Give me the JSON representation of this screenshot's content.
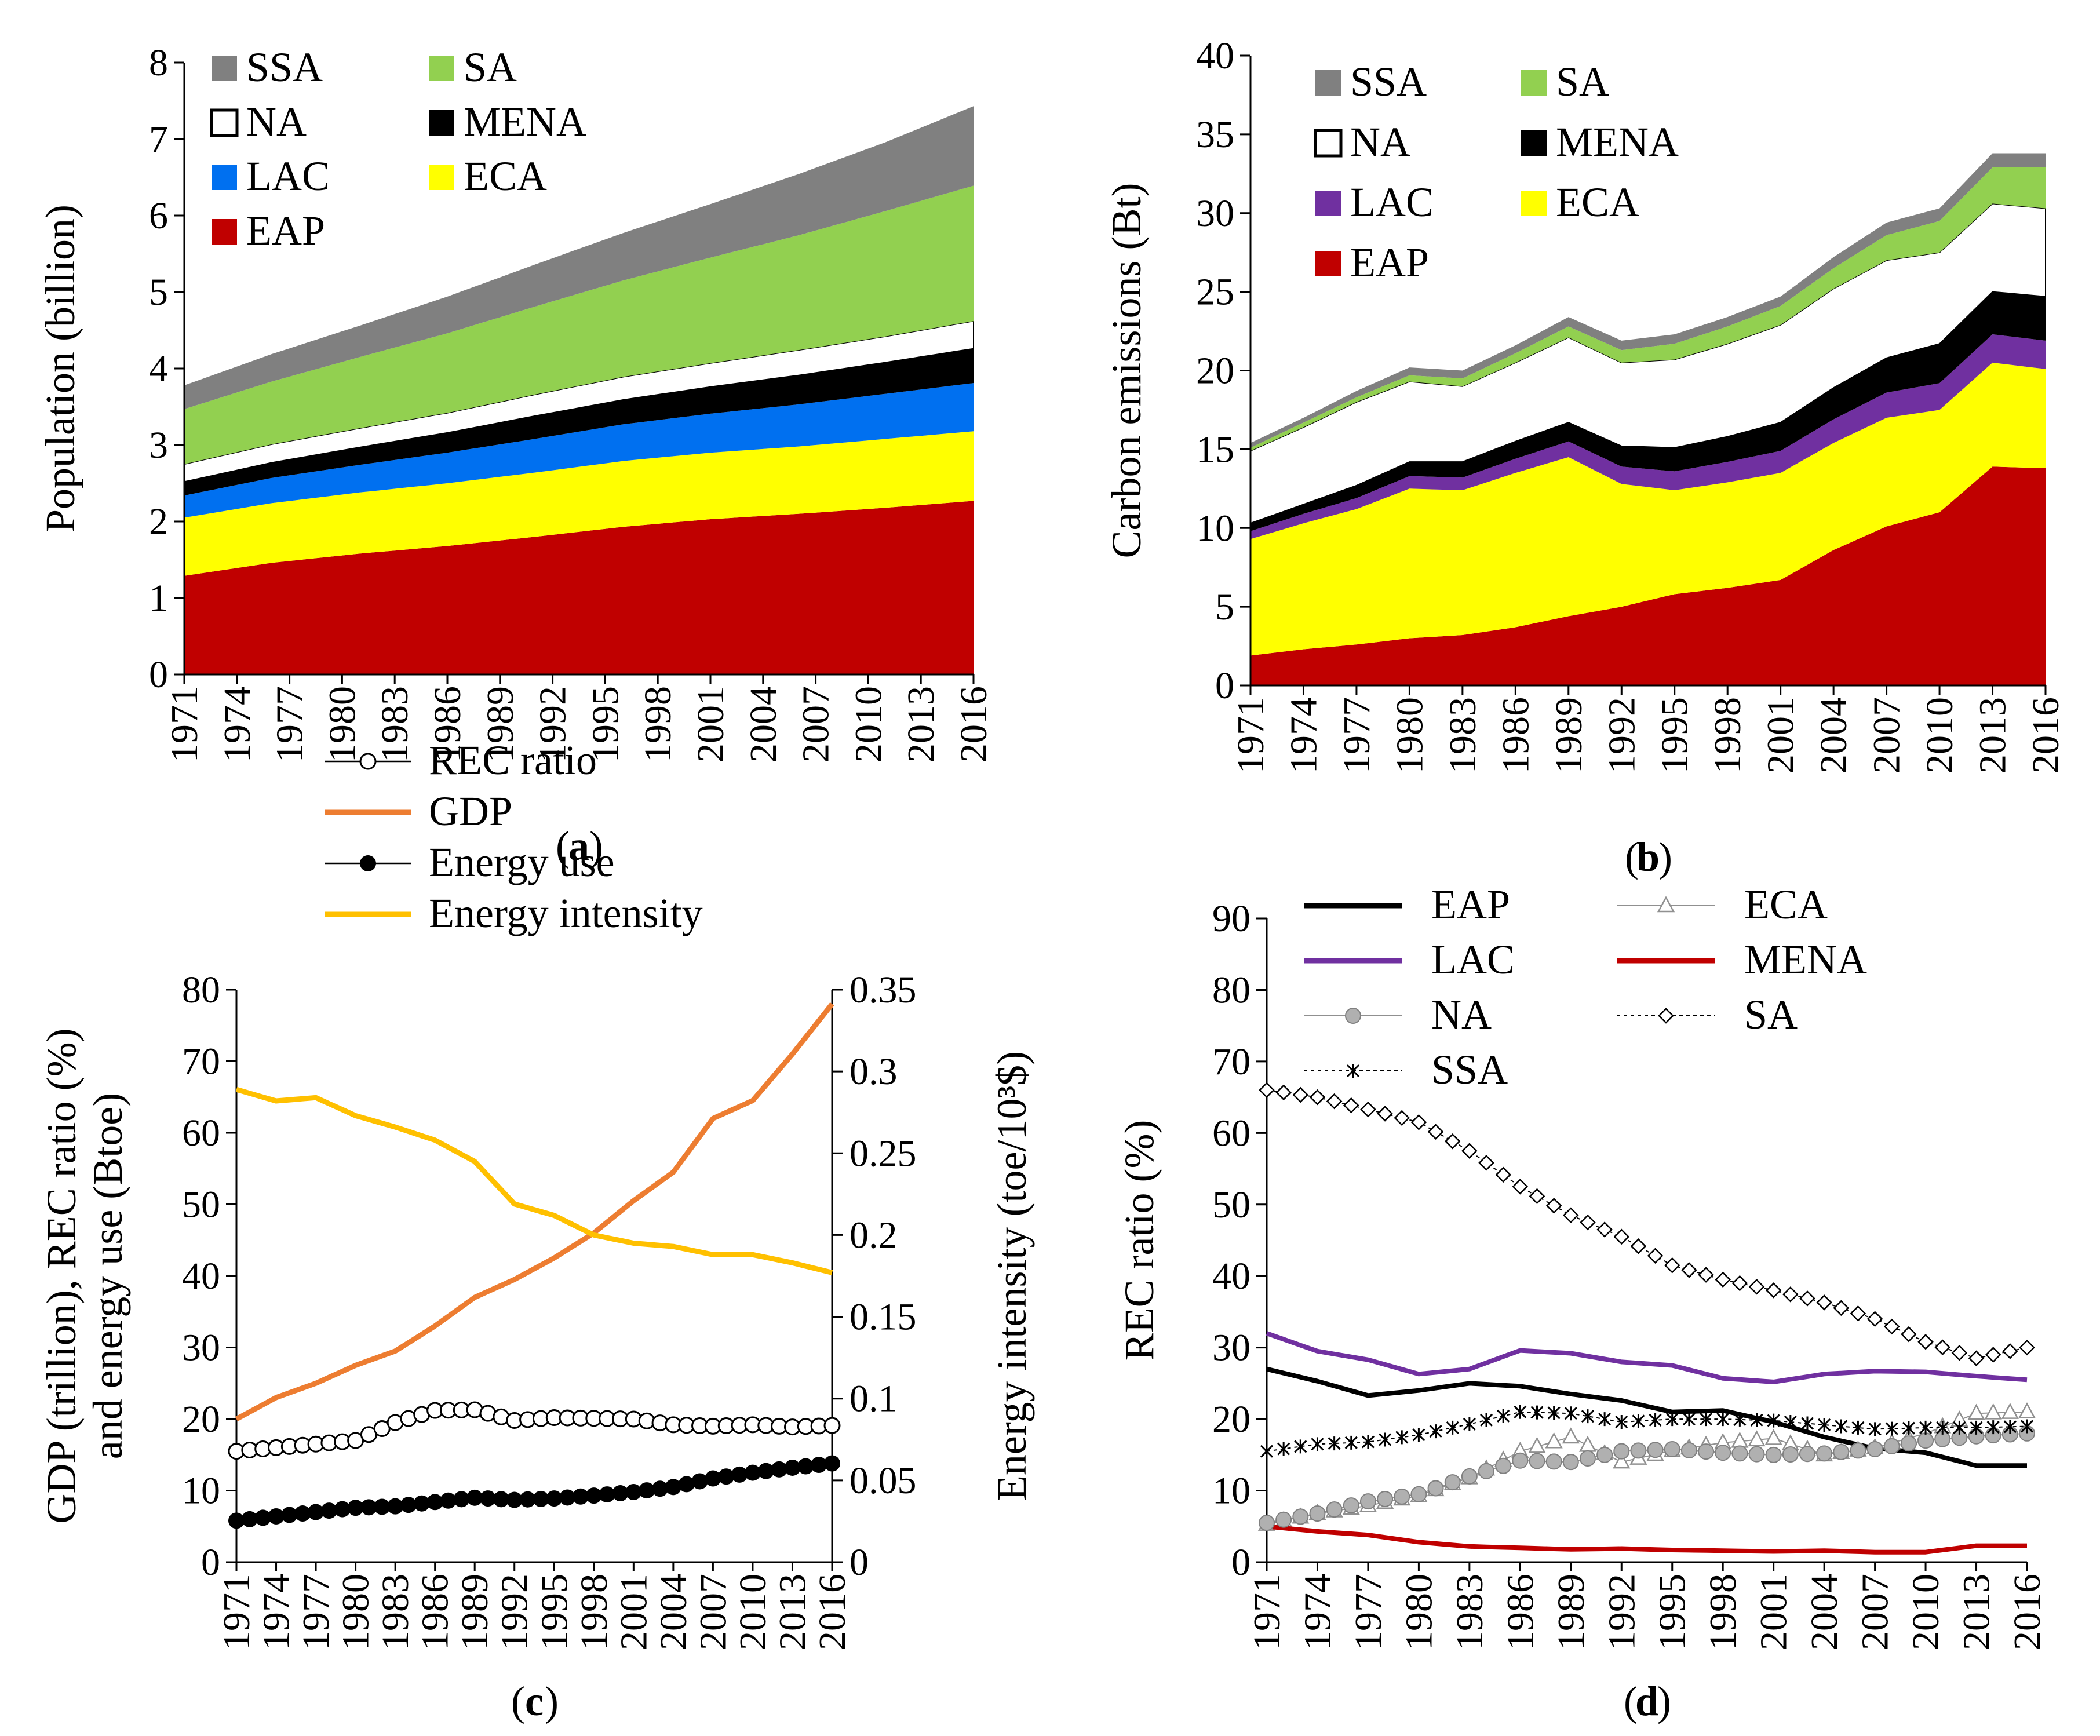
{
  "chart_data": [
    {
      "panel": "a",
      "panel_label": "a",
      "type": "area",
      "stacked": true,
      "ylabel": "Population (billion)",
      "ylim": [
        0,
        8
      ],
      "yticks": [
        "0",
        "1",
        "2",
        "3",
        "4",
        "5",
        "6",
        "7",
        "8"
      ],
      "xtick_labels": [
        "1971",
        "1974",
        "1977",
        "1980",
        "1983",
        "1986",
        "1989",
        "1992",
        "1995",
        "1998",
        "2001",
        "2004",
        "2007",
        "2010",
        "2013",
        "2016"
      ],
      "legend": [
        {
          "label": "SSA",
          "color": "#808080"
        },
        {
          "label": "SA",
          "color": "#92d050"
        },
        {
          "label": "NA",
          "color": "#ffffff"
        },
        {
          "label": "MENA",
          "color": "#000000"
        },
        {
          "label": "LAC",
          "color": "#0070f0"
        },
        {
          "label": "ECA",
          "color": "#ffff00"
        },
        {
          "label": "EAP",
          "color": "#c00000"
        }
      ],
      "years": [
        1971,
        1976,
        1981,
        1986,
        1991,
        1996,
        2001,
        2006,
        2011,
        2016
      ],
      "series": [
        {
          "name": "EAP",
          "color": "#c00000",
          "values": [
            1.29,
            1.46,
            1.58,
            1.68,
            1.8,
            1.93,
            2.03,
            2.1,
            2.18,
            2.27
          ]
        },
        {
          "name": "ECA",
          "color": "#ffff00",
          "values": [
            0.76,
            0.78,
            0.8,
            0.82,
            0.84,
            0.86,
            0.87,
            0.88,
            0.9,
            0.91
          ]
        },
        {
          "name": "LAC",
          "color": "#0070f0",
          "values": [
            0.29,
            0.33,
            0.36,
            0.4,
            0.44,
            0.48,
            0.51,
            0.55,
            0.59,
            0.63
          ]
        },
        {
          "name": "MENA",
          "color": "#000000",
          "values": [
            0.18,
            0.2,
            0.23,
            0.26,
            0.3,
            0.32,
            0.35,
            0.38,
            0.41,
            0.45
          ]
        },
        {
          "name": "NA",
          "color": "#ffffff",
          "values": [
            0.23,
            0.24,
            0.25,
            0.26,
            0.28,
            0.3,
            0.31,
            0.33,
            0.34,
            0.36
          ]
        },
        {
          "name": "SA",
          "color": "#92d050",
          "values": [
            0.72,
            0.82,
            0.93,
            1.04,
            1.15,
            1.26,
            1.38,
            1.5,
            1.64,
            1.77
          ]
        },
        {
          "name": "SSA",
          "color": "#808080",
          "values": [
            0.31,
            0.36,
            0.41,
            0.48,
            0.55,
            0.62,
            0.7,
            0.8,
            0.9,
            1.04
          ]
        }
      ]
    },
    {
      "panel": "b",
      "panel_label": "b",
      "type": "area",
      "stacked": true,
      "ylabel": "Carbon emissions (Bt)",
      "ylim": [
        0,
        40
      ],
      "yticks": [
        "0",
        "5",
        "10",
        "15",
        "20",
        "25",
        "30",
        "35",
        "40"
      ],
      "xtick_labels": [
        "1971",
        "1974",
        "1977",
        "1980",
        "1983",
        "1986",
        "1989",
        "1992",
        "1995",
        "1998",
        "2001",
        "2004",
        "2007",
        "2010",
        "2013",
        "2016"
      ],
      "legend": [
        {
          "label": "SSA",
          "color": "#808080"
        },
        {
          "label": "SA",
          "color": "#92d050"
        },
        {
          "label": "NA",
          "color": "#ffffff"
        },
        {
          "label": "MENA",
          "color": "#000000"
        },
        {
          "label": "LAC",
          "color": "#7030a0"
        },
        {
          "label": "ECA",
          "color": "#ffff00"
        },
        {
          "label": "EAP",
          "color": "#c00000"
        }
      ],
      "years": [
        1971,
        1974,
        1977,
        1980,
        1983,
        1986,
        1989,
        1992,
        1995,
        1998,
        2001,
        2004,
        2007,
        2010,
        2013,
        2016
      ],
      "series": [
        {
          "name": "EAP",
          "color": "#c00000",
          "values": [
            1.9,
            2.3,
            2.6,
            3.0,
            3.2,
            3.7,
            4.4,
            5.0,
            5.8,
            6.2,
            6.7,
            8.6,
            10.1,
            11.0,
            13.9,
            13.8
          ]
        },
        {
          "name": "ECA",
          "color": "#ffff00",
          "values": [
            7.4,
            8.0,
            8.6,
            9.5,
            9.2,
            9.8,
            10.1,
            7.8,
            6.6,
            6.7,
            6.8,
            6.8,
            6.9,
            6.5,
            6.6,
            6.3
          ]
        },
        {
          "name": "LAC",
          "color": "#7030a0",
          "values": [
            0.5,
            0.6,
            0.7,
            0.8,
            0.8,
            0.9,
            1.0,
            1.1,
            1.2,
            1.3,
            1.4,
            1.5,
            1.6,
            1.7,
            1.8,
            1.8
          ]
        },
        {
          "name": "MENA",
          "color": "#000000",
          "values": [
            0.5,
            0.6,
            0.8,
            0.9,
            1.0,
            1.1,
            1.2,
            1.3,
            1.5,
            1.6,
            1.8,
            2.0,
            2.2,
            2.5,
            2.7,
            2.8
          ]
        },
        {
          "name": "NA",
          "color": "#ffffff",
          "values": [
            4.6,
            4.9,
            5.3,
            5.1,
            4.8,
            5.0,
            5.4,
            5.3,
            5.6,
            5.9,
            6.2,
            6.3,
            6.2,
            5.8,
            5.6,
            5.6
          ]
        },
        {
          "name": "SA",
          "color": "#92d050",
          "values": [
            0.2,
            0.3,
            0.3,
            0.4,
            0.5,
            0.6,
            0.7,
            0.8,
            1.0,
            1.1,
            1.2,
            1.3,
            1.6,
            2.0,
            2.3,
            2.6
          ]
        },
        {
          "name": "SSA",
          "color": "#808080",
          "values": [
            0.3,
            0.3,
            0.4,
            0.5,
            0.5,
            0.5,
            0.6,
            0.6,
            0.6,
            0.6,
            0.6,
            0.7,
            0.8,
            0.8,
            0.9,
            0.9
          ]
        }
      ]
    },
    {
      "panel": "c",
      "panel_label": "c",
      "type": "line",
      "ylabel_left": [
        "GDP (trillion), REC ratio (%)",
        "and energy use (Btoe)"
      ],
      "ylabel_right": "Energy intensity (toe/10³$)",
      "ylim_left": [
        0,
        80
      ],
      "yticks_left": [
        "0",
        "10",
        "20",
        "30",
        "40",
        "50",
        "60",
        "70",
        "80"
      ],
      "ylim_right": [
        0,
        0.35
      ],
      "yticks_right": [
        "0",
        "0.05",
        "0.1",
        "0.15",
        "0.2",
        "0.25",
        "0.3",
        "0.35"
      ],
      "xtick_labels": [
        "1971",
        "1974",
        "1977",
        "1980",
        "1983",
        "1986",
        "1989",
        "1992",
        "1995",
        "1998",
        "2001",
        "2004",
        "2007",
        "2010",
        "2013",
        "2016"
      ],
      "years": [
        1971,
        1974,
        1977,
        1980,
        1983,
        1986,
        1989,
        1992,
        1995,
        1998,
        2001,
        2004,
        2007,
        2010,
        2013,
        2016
      ],
      "legend": [
        {
          "label": "REC ratio",
          "style": "open-circle-line",
          "color": "#000000"
        },
        {
          "label": "GDP",
          "style": "line",
          "color": "#ed7d31"
        },
        {
          "label": "Energy use",
          "style": "filled-circle-line",
          "color": "#000000"
        },
        {
          "label": "Energy intensity",
          "style": "line",
          "color": "#ffc000"
        }
      ],
      "series": [
        {
          "name": "REC ratio",
          "axis": "left",
          "color": "#000000",
          "marker": "open-circle",
          "values": [
            15.5,
            16.0,
            16.5,
            17.0,
            19.5,
            21.2,
            21.3,
            19.8,
            20.2,
            20.1,
            20.0,
            19.2,
            19.0,
            19.2,
            18.9,
            19.1
          ]
        },
        {
          "name": "GDP",
          "axis": "left",
          "color": "#ed7d31",
          "marker": "none",
          "values": [
            20.0,
            23.0,
            25.0,
            27.5,
            29.5,
            33.0,
            37.0,
            39.5,
            42.5,
            46.0,
            50.5,
            54.5,
            62.0,
            64.5,
            71.0,
            78.0
          ]
        },
        {
          "name": "Energy use",
          "axis": "left",
          "color": "#000000",
          "marker": "filled-circle",
          "values": [
            5.8,
            6.4,
            7.0,
            7.6,
            7.8,
            8.4,
            9.0,
            8.7,
            8.9,
            9.3,
            9.8,
            10.5,
            11.7,
            12.5,
            13.2,
            13.8
          ]
        },
        {
          "name": "Energy intensity",
          "axis": "right",
          "color": "#ffc000",
          "marker": "none",
          "values": [
            0.289,
            0.282,
            0.284,
            0.273,
            0.266,
            0.258,
            0.245,
            0.219,
            0.212,
            0.2,
            0.195,
            0.193,
            0.188,
            0.188,
            0.183,
            0.177
          ]
        }
      ]
    },
    {
      "panel": "d",
      "panel_label": "d",
      "type": "line",
      "ylabel": "REC ratio (%)",
      "ylim": [
        0,
        90
      ],
      "yticks": [
        "0",
        "10",
        "20",
        "30",
        "40",
        "50",
        "60",
        "70",
        "80",
        "90"
      ],
      "xtick_labels": [
        "1971",
        "1974",
        "1977",
        "1980",
        "1983",
        "1986",
        "1989",
        "1992",
        "1995",
        "1998",
        "2001",
        "2004",
        "2007",
        "2010",
        "2013",
        "2016"
      ],
      "years": [
        1971,
        1974,
        1977,
        1980,
        1983,
        1986,
        1989,
        1992,
        1995,
        1998,
        2001,
        2004,
        2007,
        2010,
        2013,
        2016
      ],
      "legend": [
        {
          "label": "EAP",
          "color": "#000000",
          "style": "thick-line"
        },
        {
          "label": "ECA",
          "color": "#909090",
          "style": "open-triangle-line"
        },
        {
          "label": "LAC",
          "color": "#7030a0",
          "style": "thick-line"
        },
        {
          "label": "MENA",
          "color": "#c00000",
          "style": "thick-line"
        },
        {
          "label": "NA",
          "color": "#909090",
          "style": "gray-circle-line"
        },
        {
          "label": "SA",
          "color": "#000000",
          "style": "open-diamond-dash"
        },
        {
          "label": "SSA",
          "color": "#000000",
          "style": "star-dash"
        }
      ],
      "series": [
        {
          "name": "EAP",
          "color": "#000000",
          "marker": "none",
          "values": [
            27.0,
            25.3,
            23.3,
            24.0,
            25.0,
            24.6,
            23.5,
            22.6,
            21.0,
            21.2,
            19.6,
            17.5,
            15.9,
            15.3,
            13.5,
            13.5
          ]
        },
        {
          "name": "ECA",
          "color": "#909090",
          "marker": "triangle",
          "values": [
            5.3,
            6.8,
            7.9,
            9.3,
            11.8,
            15.5,
            17.5,
            14.0,
            15.6,
            16.7,
            17.3,
            15.0,
            16.0,
            18.0,
            20.8,
            21.0
          ]
        },
        {
          "name": "LAC",
          "color": "#7030a0",
          "marker": "none",
          "values": [
            32.0,
            29.5,
            28.3,
            26.3,
            27.0,
            29.6,
            29.2,
            28.0,
            27.5,
            25.7,
            25.2,
            26.3,
            26.7,
            26.6,
            26.0,
            25.5
          ]
        },
        {
          "name": "MENA",
          "color": "#c00000",
          "marker": "none",
          "values": [
            5.0,
            4.3,
            3.8,
            2.8,
            2.2,
            2.0,
            1.8,
            1.9,
            1.7,
            1.6,
            1.5,
            1.6,
            1.4,
            1.4,
            2.3,
            2.3
          ]
        },
        {
          "name": "NA",
          "color": "#909090",
          "marker": "circle",
          "values": [
            5.5,
            6.8,
            8.5,
            9.5,
            12.0,
            14.2,
            14.0,
            15.5,
            15.8,
            15.3,
            15.0,
            15.2,
            15.8,
            17.0,
            17.6,
            18.0
          ]
        },
        {
          "name": "SA",
          "color": "#000000",
          "marker": "diamond",
          "values": [
            66.0,
            65.0,
            63.3,
            61.5,
            57.5,
            52.5,
            48.5,
            45.5,
            41.5,
            39.5,
            38.0,
            36.3,
            34.0,
            30.8,
            28.5,
            30.0
          ]
        },
        {
          "name": "SSA",
          "color": "#000000",
          "marker": "star",
          "values": [
            15.5,
            16.5,
            16.8,
            17.8,
            19.3,
            21.0,
            20.8,
            19.6,
            20.0,
            20.0,
            19.8,
            19.2,
            18.6,
            18.8,
            18.8,
            19.0
          ]
        }
      ]
    }
  ]
}
